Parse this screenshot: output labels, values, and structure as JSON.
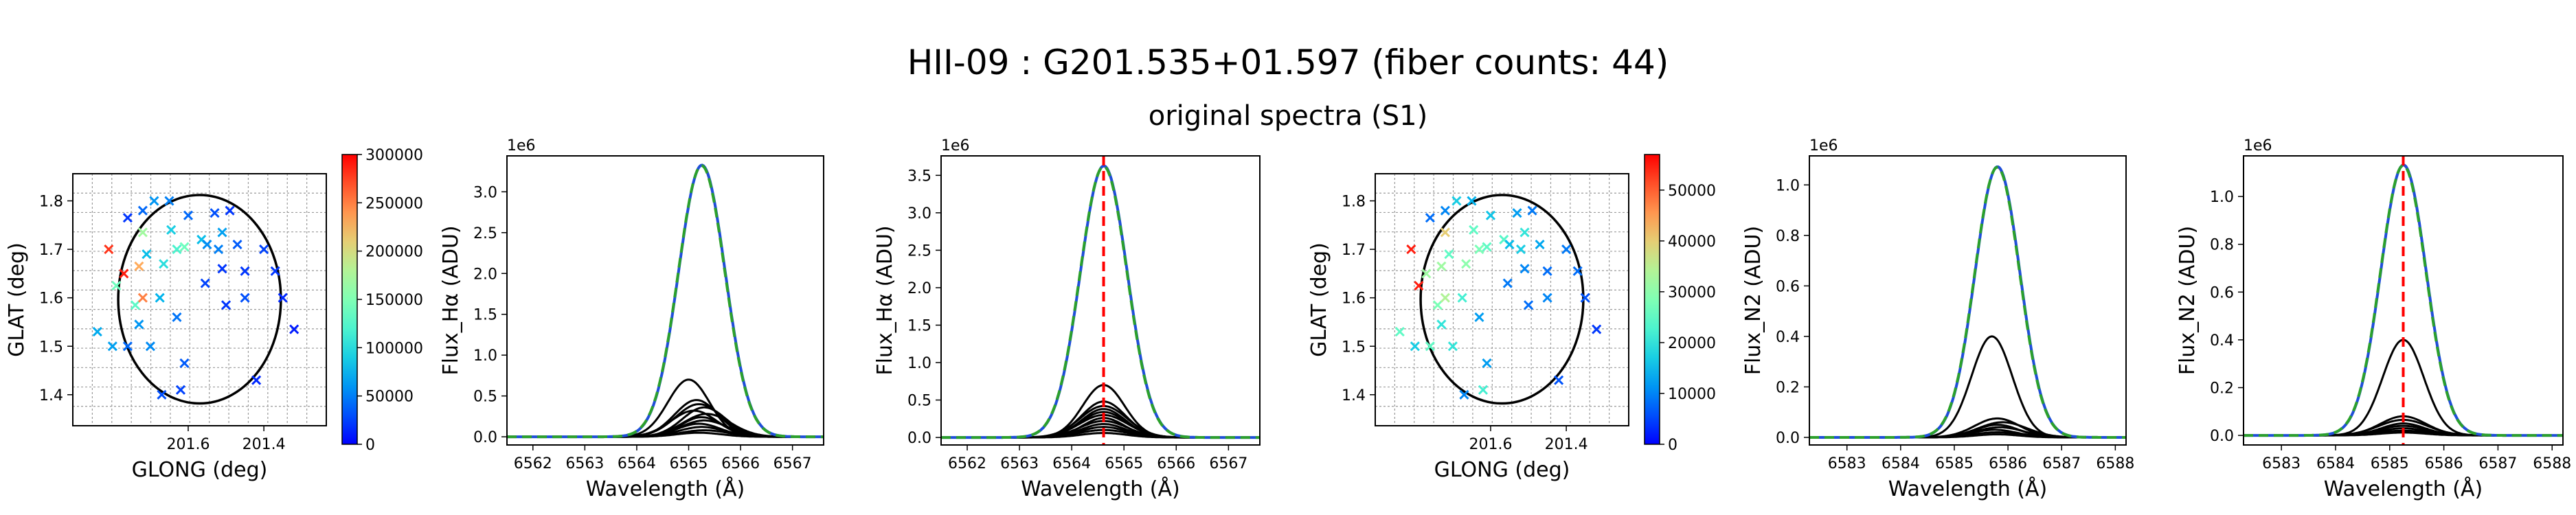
{
  "figure": {
    "title": "HII-09 : G201.535+01.597 (fiber counts: 44)",
    "subtitle": "original spectra (S1)"
  },
  "colors": {
    "envelope": "#ff7f0e",
    "fit_green": "#2ca02c",
    "fit_blue": "#1f4fd8",
    "marker_line": "#ff0000",
    "components": "#000000"
  },
  "chart_data": [
    {
      "type": "scatter",
      "xlabel": "GLONG (deg)",
      "ylabel": "GLAT (deg)",
      "xlim": [
        201.905,
        201.235
      ],
      "ylim": [
        1.336,
        1.856
      ],
      "x_reversed": true,
      "xticks": [
        201.6,
        201.4
      ],
      "xtick_labels": [
        "201.6",
        "201.4"
      ],
      "yticks": [
        1.4,
        1.5,
        1.6,
        1.7,
        1.8
      ],
      "ytick_labels": [
        "1.4",
        "1.5",
        "1.6",
        "1.7",
        "1.8"
      ],
      "grid": true,
      "circle": {
        "center": [
          201.57,
          1.597
        ],
        "radius_deg": 0.215
      },
      "colorbar": {
        "colormap": "rainbow",
        "range": [
          0,
          300000
        ],
        "ticks": [
          0,
          50000,
          100000,
          150000,
          200000,
          250000,
          300000
        ],
        "tick_labels": [
          "0",
          "50000",
          "100000",
          "150000",
          "200000",
          "250000",
          "300000"
        ]
      },
      "points": [
        {
          "x": 201.84,
          "y": 1.53,
          "v": 70000
        },
        {
          "x": 201.8,
          "y": 1.5,
          "v": 65000
        },
        {
          "x": 201.81,
          "y": 1.7,
          "v": 280000
        },
        {
          "x": 201.79,
          "y": 1.625,
          "v": 140000
        },
        {
          "x": 201.77,
          "y": 1.65,
          "v": 290000
        },
        {
          "x": 201.76,
          "y": 1.5,
          "v": 40000
        },
        {
          "x": 201.76,
          "y": 1.765,
          "v": 20000
        },
        {
          "x": 201.74,
          "y": 1.585,
          "v": 130000
        },
        {
          "x": 201.73,
          "y": 1.545,
          "v": 60000
        },
        {
          "x": 201.73,
          "y": 1.665,
          "v": 230000
        },
        {
          "x": 201.72,
          "y": 1.735,
          "v": 170000
        },
        {
          "x": 201.72,
          "y": 1.6,
          "v": 250000
        },
        {
          "x": 201.71,
          "y": 1.69,
          "v": 80000
        },
        {
          "x": 201.72,
          "y": 1.78,
          "v": 40000
        },
        {
          "x": 201.69,
          "y": 1.8,
          "v": 60000
        },
        {
          "x": 201.7,
          "y": 1.5,
          "v": 55000
        },
        {
          "x": 201.675,
          "y": 1.6,
          "v": 75000
        },
        {
          "x": 201.67,
          "y": 1.4,
          "v": 30000
        },
        {
          "x": 201.665,
          "y": 1.67,
          "v": 100000
        },
        {
          "x": 201.65,
          "y": 1.8,
          "v": 50000
        },
        {
          "x": 201.645,
          "y": 1.74,
          "v": 90000
        },
        {
          "x": 201.63,
          "y": 1.7,
          "v": 120000
        },
        {
          "x": 201.63,
          "y": 1.56,
          "v": 45000
        },
        {
          "x": 201.62,
          "y": 1.41,
          "v": 25000
        },
        {
          "x": 201.61,
          "y": 1.705,
          "v": 140000
        },
        {
          "x": 201.61,
          "y": 1.465,
          "v": 35000
        },
        {
          "x": 201.6,
          "y": 1.77,
          "v": 40000
        },
        {
          "x": 201.565,
          "y": 1.72,
          "v": 80000
        },
        {
          "x": 201.555,
          "y": 1.63,
          "v": 25000
        },
        {
          "x": 201.55,
          "y": 1.71,
          "v": 55000
        },
        {
          "x": 201.53,
          "y": 1.775,
          "v": 30000
        },
        {
          "x": 201.52,
          "y": 1.7,
          "v": 50000
        },
        {
          "x": 201.51,
          "y": 1.66,
          "v": 20000
        },
        {
          "x": 201.51,
          "y": 1.735,
          "v": 65000
        },
        {
          "x": 201.5,
          "y": 1.585,
          "v": 20000
        },
        {
          "x": 201.49,
          "y": 1.78,
          "v": 20000
        },
        {
          "x": 201.47,
          "y": 1.71,
          "v": 35000
        },
        {
          "x": 201.45,
          "y": 1.6,
          "v": 30000
        },
        {
          "x": 201.45,
          "y": 1.655,
          "v": 20000
        },
        {
          "x": 201.42,
          "y": 1.43,
          "v": 15000
        },
        {
          "x": 201.4,
          "y": 1.7,
          "v": 25000
        },
        {
          "x": 201.37,
          "y": 1.655,
          "v": 20000
        },
        {
          "x": 201.35,
          "y": 1.6,
          "v": 15000
        },
        {
          "x": 201.32,
          "y": 1.535,
          "v": 10000
        }
      ]
    },
    {
      "type": "line",
      "xlabel": "Wavelength (Å)",
      "ylabel": "Flux_Hα (ADU)",
      "scale_note": "1e6",
      "xlim": [
        6561.5,
        6567.6
      ],
      "ylim": [
        -0.1,
        3.44
      ],
      "xticks": [
        6562,
        6563,
        6564,
        6565,
        6566,
        6567
      ],
      "yticks": [
        0.0,
        0.5,
        1.0,
        1.5,
        2.0,
        2.5,
        3.0
      ],
      "ytick_labels": [
        "0.0",
        "0.5",
        "1.0",
        "1.5",
        "2.0",
        "2.5",
        "3.0"
      ],
      "vline": null,
      "envelope": {
        "amp": 3.32,
        "center": 6565.25,
        "sigma": 0.45
      },
      "components": [
        {
          "amp": 0.7,
          "center": 6565.0,
          "sigma": 0.4
        },
        {
          "amp": 0.45,
          "center": 6565.15,
          "sigma": 0.42
        },
        {
          "amp": 0.4,
          "center": 6565.2,
          "sigma": 0.45
        },
        {
          "amp": 0.36,
          "center": 6565.3,
          "sigma": 0.42
        },
        {
          "amp": 0.32,
          "center": 6565.1,
          "sigma": 0.44
        },
        {
          "amp": 0.28,
          "center": 6565.35,
          "sigma": 0.46
        },
        {
          "amp": 0.24,
          "center": 6565.25,
          "sigma": 0.4
        },
        {
          "amp": 0.2,
          "center": 6565.3,
          "sigma": 0.45
        },
        {
          "amp": 0.16,
          "center": 6565.2,
          "sigma": 0.42
        },
        {
          "amp": 0.12,
          "center": 6565.25,
          "sigma": 0.44
        },
        {
          "amp": 0.08,
          "center": 6565.3,
          "sigma": 0.46
        },
        {
          "amp": 0.05,
          "center": 6565.2,
          "sigma": 0.43
        }
      ]
    },
    {
      "type": "line",
      "xlabel": "Wavelength (Å)",
      "ylabel": "Flux_Hα (ADU)",
      "scale_note": "1e6",
      "xlim": [
        6561.5,
        6567.6
      ],
      "ylim": [
        -0.1,
        3.76
      ],
      "xticks": [
        6562,
        6563,
        6564,
        6565,
        6566,
        6567
      ],
      "yticks": [
        0.0,
        0.5,
        1.0,
        1.5,
        2.0,
        2.5,
        3.0,
        3.5
      ],
      "ytick_labels": [
        "0.0",
        "0.5",
        "1.0",
        "1.5",
        "2.0",
        "2.5",
        "3.0",
        "3.5"
      ],
      "vline": 6564.61,
      "envelope": {
        "amp": 3.62,
        "center": 6564.61,
        "sigma": 0.45
      },
      "components": [
        {
          "amp": 0.7,
          "center": 6564.61,
          "sigma": 0.4
        },
        {
          "amp": 0.48,
          "center": 6564.61,
          "sigma": 0.42
        },
        {
          "amp": 0.42,
          "center": 6564.61,
          "sigma": 0.45
        },
        {
          "amp": 0.38,
          "center": 6564.61,
          "sigma": 0.42
        },
        {
          "amp": 0.34,
          "center": 6564.61,
          "sigma": 0.44
        },
        {
          "amp": 0.3,
          "center": 6564.61,
          "sigma": 0.46
        },
        {
          "amp": 0.26,
          "center": 6564.61,
          "sigma": 0.4
        },
        {
          "amp": 0.22,
          "center": 6564.61,
          "sigma": 0.45
        },
        {
          "amp": 0.18,
          "center": 6564.61,
          "sigma": 0.42
        },
        {
          "amp": 0.14,
          "center": 6564.61,
          "sigma": 0.44
        },
        {
          "amp": 0.1,
          "center": 6564.61,
          "sigma": 0.46
        },
        {
          "amp": 0.06,
          "center": 6564.61,
          "sigma": 0.43
        }
      ]
    },
    {
      "type": "scatter",
      "xlabel": "GLONG (deg)",
      "ylabel": "GLAT (deg)",
      "xlim": [
        201.905,
        201.235
      ],
      "ylim": [
        1.336,
        1.856
      ],
      "x_reversed": true,
      "xticks": [
        201.6,
        201.4
      ],
      "xtick_labels": [
        "201.6",
        "201.4"
      ],
      "yticks": [
        1.4,
        1.5,
        1.6,
        1.7,
        1.8
      ],
      "ytick_labels": [
        "1.4",
        "1.5",
        "1.6",
        "1.7",
        "1.8"
      ],
      "grid": true,
      "circle": {
        "center": [
          201.57,
          1.597
        ],
        "radius_deg": 0.215
      },
      "colorbar": {
        "colormap": "rainbow",
        "range": [
          0,
          57000
        ],
        "ticks": [
          0,
          10000,
          20000,
          30000,
          40000,
          50000
        ],
        "tick_labels": [
          "0",
          "10000",
          "20000",
          "30000",
          "40000",
          "50000"
        ]
      },
      "points": [
        {
          "x": 201.84,
          "y": 1.53,
          "v": 25000
        },
        {
          "x": 201.8,
          "y": 1.5,
          "v": 17000
        },
        {
          "x": 201.81,
          "y": 1.7,
          "v": 55000
        },
        {
          "x": 201.79,
          "y": 1.625,
          "v": 55000
        },
        {
          "x": 201.77,
          "y": 1.65,
          "v": 32000
        },
        {
          "x": 201.76,
          "y": 1.5,
          "v": 25000
        },
        {
          "x": 201.76,
          "y": 1.765,
          "v": 8000
        },
        {
          "x": 201.74,
          "y": 1.585,
          "v": 28000
        },
        {
          "x": 201.73,
          "y": 1.545,
          "v": 20000
        },
        {
          "x": 201.73,
          "y": 1.665,
          "v": 32000
        },
        {
          "x": 201.72,
          "y": 1.735,
          "v": 40000
        },
        {
          "x": 201.72,
          "y": 1.6,
          "v": 34000
        },
        {
          "x": 201.71,
          "y": 1.69,
          "v": 25000
        },
        {
          "x": 201.72,
          "y": 1.78,
          "v": 10000
        },
        {
          "x": 201.69,
          "y": 1.8,
          "v": 17000
        },
        {
          "x": 201.7,
          "y": 1.5,
          "v": 20000
        },
        {
          "x": 201.675,
          "y": 1.6,
          "v": 22000
        },
        {
          "x": 201.67,
          "y": 1.4,
          "v": 10000
        },
        {
          "x": 201.665,
          "y": 1.67,
          "v": 30000
        },
        {
          "x": 201.65,
          "y": 1.8,
          "v": 14000
        },
        {
          "x": 201.645,
          "y": 1.74,
          "v": 25000
        },
        {
          "x": 201.63,
          "y": 1.7,
          "v": 28000
        },
        {
          "x": 201.63,
          "y": 1.56,
          "v": 12000
        },
        {
          "x": 201.62,
          "y": 1.41,
          "v": 22000
        },
        {
          "x": 201.61,
          "y": 1.705,
          "v": 25000
        },
        {
          "x": 201.61,
          "y": 1.465,
          "v": 12000
        },
        {
          "x": 201.6,
          "y": 1.77,
          "v": 16000
        },
        {
          "x": 201.565,
          "y": 1.72,
          "v": 24000
        },
        {
          "x": 201.555,
          "y": 1.63,
          "v": 9000
        },
        {
          "x": 201.55,
          "y": 1.71,
          "v": 15000
        },
        {
          "x": 201.53,
          "y": 1.775,
          "v": 12000
        },
        {
          "x": 201.52,
          "y": 1.7,
          "v": 17000
        },
        {
          "x": 201.51,
          "y": 1.66,
          "v": 10000
        },
        {
          "x": 201.51,
          "y": 1.735,
          "v": 20000
        },
        {
          "x": 201.5,
          "y": 1.585,
          "v": 8000
        },
        {
          "x": 201.49,
          "y": 1.78,
          "v": 9000
        },
        {
          "x": 201.47,
          "y": 1.71,
          "v": 13000
        },
        {
          "x": 201.45,
          "y": 1.6,
          "v": 10000
        },
        {
          "x": 201.45,
          "y": 1.655,
          "v": 8000
        },
        {
          "x": 201.42,
          "y": 1.43,
          "v": 6000
        },
        {
          "x": 201.4,
          "y": 1.7,
          "v": 9000
        },
        {
          "x": 201.37,
          "y": 1.655,
          "v": 8000
        },
        {
          "x": 201.35,
          "y": 1.6,
          "v": 6000
        },
        {
          "x": 201.32,
          "y": 1.535,
          "v": 4000
        }
      ]
    },
    {
      "type": "line",
      "xlabel": "Wavelength (Å)",
      "ylabel": "Flux_N2 (ADU)",
      "scale_note": "1e6",
      "xlim": [
        6582.3,
        6588.2
      ],
      "ylim": [
        -0.03,
        1.115
      ],
      "xticks": [
        6583,
        6584,
        6585,
        6586,
        6587,
        6588
      ],
      "yticks": [
        0.0,
        0.2,
        0.4,
        0.6,
        0.8,
        1.0
      ],
      "ytick_labels": [
        "0.0",
        "0.2",
        "0.4",
        "0.6",
        "0.8",
        "1.0"
      ],
      "vline": null,
      "envelope": {
        "amp": 1.07,
        "center": 6585.8,
        "sigma": 0.42
      },
      "components": [
        {
          "amp": 0.4,
          "center": 6585.7,
          "sigma": 0.38
        },
        {
          "amp": 0.075,
          "center": 6585.8,
          "sigma": 0.42
        },
        {
          "amp": 0.06,
          "center": 6585.9,
          "sigma": 0.45
        },
        {
          "amp": 0.05,
          "center": 6585.8,
          "sigma": 0.4
        },
        {
          "amp": 0.04,
          "center": 6585.85,
          "sigma": 0.44
        },
        {
          "amp": 0.03,
          "center": 6585.75,
          "sigma": 0.42
        },
        {
          "amp": 0.02,
          "center": 6585.8,
          "sigma": 0.46
        },
        {
          "amp": 0.012,
          "center": 6585.8,
          "sigma": 0.41
        }
      ]
    },
    {
      "type": "line",
      "xlabel": "Wavelength (Å)",
      "ylabel": "Flux_N2 (ADU)",
      "scale_note": "1e6",
      "xlim": [
        6582.3,
        6588.2
      ],
      "ylim": [
        -0.04,
        1.17
      ],
      "xticks": [
        6583,
        6584,
        6585,
        6586,
        6587,
        6588
      ],
      "yticks": [
        0.0,
        0.2,
        0.4,
        0.6,
        0.8,
        1.0
      ],
      "ytick_labels": [
        "0.0",
        "0.2",
        "0.4",
        "0.6",
        "0.8",
        "1.0"
      ],
      "vline": 6585.25,
      "envelope": {
        "amp": 1.13,
        "center": 6585.25,
        "sigma": 0.42
      },
      "components": [
        {
          "amp": 0.4,
          "center": 6585.25,
          "sigma": 0.38
        },
        {
          "amp": 0.08,
          "center": 6585.25,
          "sigma": 0.42
        },
        {
          "amp": 0.065,
          "center": 6585.25,
          "sigma": 0.45
        },
        {
          "amp": 0.05,
          "center": 6585.25,
          "sigma": 0.4
        },
        {
          "amp": 0.04,
          "center": 6585.25,
          "sigma": 0.44
        },
        {
          "amp": 0.03,
          "center": 6585.25,
          "sigma": 0.42
        },
        {
          "amp": 0.02,
          "center": 6585.25,
          "sigma": 0.46
        },
        {
          "amp": 0.012,
          "center": 6585.25,
          "sigma": 0.41
        }
      ]
    }
  ]
}
